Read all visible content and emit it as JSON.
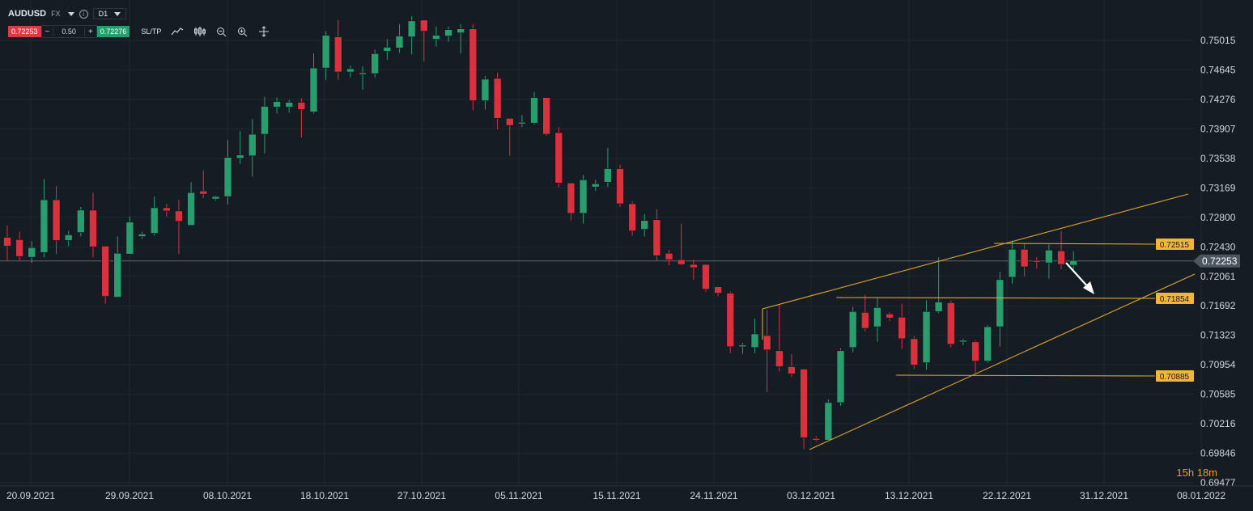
{
  "toolbar": {
    "symbol": "AUDUSD",
    "market": "FX",
    "timeframe": "D1",
    "bid": "0.72253",
    "ask": "0.72276",
    "quantity": "0.50",
    "minus": "−",
    "plus": "+",
    "sltp": "SL/TP",
    "tools": [
      "line-chart-icon",
      "candles-icon",
      "zoom-out-icon",
      "zoom-in-icon",
      "crosshair-icon"
    ]
  },
  "countdown": "15h 18m",
  "colors": {
    "bull": "#2a9d6f",
    "bear": "#d9323f",
    "trendline": "#e0a630",
    "label_bg": "#f0b53a",
    "background": "#161c24"
  },
  "chart_data": {
    "type": "candlestick",
    "symbol": "AUDUSD",
    "timeframe": "D1",
    "current_price": 0.72253,
    "ylim": [
      0.69477,
      0.7527
    ],
    "y_ticks": [
      0.75015,
      0.74645,
      0.74276,
      0.73907,
      0.73538,
      0.73169,
      0.728,
      0.7243,
      0.72061,
      0.71692,
      0.71323,
      0.70954,
      0.70585,
      0.70216,
      0.69846,
      0.69477
    ],
    "x_ticks": [
      "20.09.2021",
      "29.09.2021",
      "08.10.2021",
      "18.10.2021",
      "27.10.2021",
      "05.11.2021",
      "15.11.2021",
      "24.11.2021",
      "03.12.2021",
      "13.12.2021",
      "22.12.2021",
      "31.12.2021",
      "08.01.2022"
    ],
    "candles": [
      {
        "o": 0.7255,
        "h": 0.727,
        "l": 0.7225,
        "c": 0.7244
      },
      {
        "o": 0.7252,
        "h": 0.7262,
        "l": 0.7226,
        "c": 0.7231
      },
      {
        "o": 0.723,
        "h": 0.725,
        "l": 0.7223,
        "c": 0.7242
      },
      {
        "o": 0.7236,
        "h": 0.7328,
        "l": 0.723,
        "c": 0.7302
      },
      {
        "o": 0.7302,
        "h": 0.7319,
        "l": 0.7234,
        "c": 0.7251
      },
      {
        "o": 0.7251,
        "h": 0.7263,
        "l": 0.7244,
        "c": 0.7258
      },
      {
        "o": 0.7261,
        "h": 0.7293,
        "l": 0.7256,
        "c": 0.7289
      },
      {
        "o": 0.7289,
        "h": 0.7311,
        "l": 0.723,
        "c": 0.7243
      },
      {
        "o": 0.7244,
        "h": 0.7244,
        "l": 0.7172,
        "c": 0.7181
      },
      {
        "o": 0.718,
        "h": 0.7256,
        "l": 0.718,
        "c": 0.7235
      },
      {
        "o": 0.7234,
        "h": 0.7281,
        "l": 0.7234,
        "c": 0.7274
      },
      {
        "o": 0.7256,
        "h": 0.7262,
        "l": 0.7253,
        "c": 0.7259
      },
      {
        "o": 0.726,
        "h": 0.7306,
        "l": 0.7257,
        "c": 0.7292
      },
      {
        "o": 0.7292,
        "h": 0.7297,
        "l": 0.7281,
        "c": 0.7288
      },
      {
        "o": 0.7288,
        "h": 0.7302,
        "l": 0.7234,
        "c": 0.7275
      },
      {
        "o": 0.727,
        "h": 0.7324,
        "l": 0.727,
        "c": 0.7311
      },
      {
        "o": 0.7313,
        "h": 0.7339,
        "l": 0.7304,
        "c": 0.7309
      },
      {
        "o": 0.7303,
        "h": 0.7307,
        "l": 0.7301,
        "c": 0.7306
      },
      {
        "o": 0.7306,
        "h": 0.7377,
        "l": 0.7296,
        "c": 0.7355
      },
      {
        "o": 0.7354,
        "h": 0.7388,
        "l": 0.7347,
        "c": 0.7358
      },
      {
        "o": 0.7357,
        "h": 0.7403,
        "l": 0.7331,
        "c": 0.7384
      },
      {
        "o": 0.7384,
        "h": 0.7431,
        "l": 0.736,
        "c": 0.7419
      },
      {
        "o": 0.7418,
        "h": 0.743,
        "l": 0.741,
        "c": 0.7425
      },
      {
        "o": 0.7418,
        "h": 0.7427,
        "l": 0.7411,
        "c": 0.7424
      },
      {
        "o": 0.7424,
        "h": 0.7429,
        "l": 0.738,
        "c": 0.7415
      },
      {
        "o": 0.7412,
        "h": 0.7485,
        "l": 0.741,
        "c": 0.7467
      },
      {
        "o": 0.7467,
        "h": 0.7513,
        "l": 0.7452,
        "c": 0.7508
      },
      {
        "o": 0.7506,
        "h": 0.7527,
        "l": 0.7452,
        "c": 0.7462
      },
      {
        "o": 0.7462,
        "h": 0.747,
        "l": 0.7455,
        "c": 0.7466
      },
      {
        "o": 0.746,
        "h": 0.7469,
        "l": 0.744,
        "c": 0.7461
      },
      {
        "o": 0.746,
        "h": 0.749,
        "l": 0.7455,
        "c": 0.7485
      },
      {
        "o": 0.7488,
        "h": 0.7503,
        "l": 0.7477,
        "c": 0.7493
      },
      {
        "o": 0.7492,
        "h": 0.7522,
        "l": 0.7486,
        "c": 0.7507
      },
      {
        "o": 0.7506,
        "h": 0.7532,
        "l": 0.7484,
        "c": 0.7526
      },
      {
        "o": 0.7527,
        "h": 0.7527,
        "l": 0.7475,
        "c": 0.7513
      },
      {
        "o": 0.7503,
        "h": 0.7519,
        "l": 0.7494,
        "c": 0.7508
      },
      {
        "o": 0.7507,
        "h": 0.7519,
        "l": 0.75,
        "c": 0.7515
      },
      {
        "o": 0.7511,
        "h": 0.7522,
        "l": 0.7485,
        "c": 0.7516
      },
      {
        "o": 0.7516,
        "h": 0.7522,
        "l": 0.7414,
        "c": 0.7426
      },
      {
        "o": 0.7426,
        "h": 0.7457,
        "l": 0.7415,
        "c": 0.7453
      },
      {
        "o": 0.7454,
        "h": 0.7461,
        "l": 0.739,
        "c": 0.7404
      },
      {
        "o": 0.7404,
        "h": 0.7404,
        "l": 0.7357,
        "c": 0.7395
      },
      {
        "o": 0.7398,
        "h": 0.7408,
        "l": 0.7393,
        "c": 0.7399
      },
      {
        "o": 0.7398,
        "h": 0.7437,
        "l": 0.7396,
        "c": 0.743
      },
      {
        "o": 0.743,
        "h": 0.743,
        "l": 0.7382,
        "c": 0.7384
      },
      {
        "o": 0.7386,
        "h": 0.7393,
        "l": 0.7318,
        "c": 0.7323
      },
      {
        "o": 0.7323,
        "h": 0.7323,
        "l": 0.7276,
        "c": 0.7285
      },
      {
        "o": 0.7285,
        "h": 0.7333,
        "l": 0.7272,
        "c": 0.7327
      },
      {
        "o": 0.7318,
        "h": 0.7327,
        "l": 0.7313,
        "c": 0.7322
      },
      {
        "o": 0.7324,
        "h": 0.7367,
        "l": 0.7318,
        "c": 0.7341
      },
      {
        "o": 0.7341,
        "h": 0.7346,
        "l": 0.7293,
        "c": 0.7297
      },
      {
        "o": 0.7297,
        "h": 0.73,
        "l": 0.7257,
        "c": 0.7263
      },
      {
        "o": 0.7265,
        "h": 0.7284,
        "l": 0.7256,
        "c": 0.7276
      },
      {
        "o": 0.7277,
        "h": 0.729,
        "l": 0.7225,
        "c": 0.7232
      },
      {
        "o": 0.7235,
        "h": 0.7239,
        "l": 0.722,
        "c": 0.7227
      },
      {
        "o": 0.7227,
        "h": 0.7272,
        "l": 0.722,
        "c": 0.7221
      },
      {
        "o": 0.7221,
        "h": 0.7227,
        "l": 0.7202,
        "c": 0.7217
      },
      {
        "o": 0.7221,
        "h": 0.7221,
        "l": 0.7187,
        "c": 0.719
      },
      {
        "o": 0.7193,
        "h": 0.7194,
        "l": 0.7181,
        "c": 0.7185
      },
      {
        "o": 0.7185,
        "h": 0.7187,
        "l": 0.711,
        "c": 0.7118
      },
      {
        "o": 0.7118,
        "h": 0.7123,
        "l": 0.7109,
        "c": 0.712
      },
      {
        "o": 0.7117,
        "h": 0.7153,
        "l": 0.711,
        "c": 0.7134
      },
      {
        "o": 0.7132,
        "h": 0.7164,
        "l": 0.7061,
        "c": 0.7114
      },
      {
        "o": 0.7113,
        "h": 0.7171,
        "l": 0.7087,
        "c": 0.7093
      },
      {
        "o": 0.7093,
        "h": 0.7109,
        "l": 0.708,
        "c": 0.7084
      },
      {
        "o": 0.709,
        "h": 0.709,
        "l": 0.699,
        "c": 0.7004
      },
      {
        "o": 0.7003,
        "h": 0.7006,
        "l": 0.6999,
        "c": 0.7001
      },
      {
        "o": 0.7001,
        "h": 0.7052,
        "l": 0.7,
        "c": 0.7048
      },
      {
        "o": 0.7048,
        "h": 0.7116,
        "l": 0.7044,
        "c": 0.7113
      },
      {
        "o": 0.7117,
        "h": 0.7168,
        "l": 0.7111,
        "c": 0.7162
      },
      {
        "o": 0.7161,
        "h": 0.7183,
        "l": 0.7137,
        "c": 0.7141
      },
      {
        "o": 0.7143,
        "h": 0.718,
        "l": 0.7124,
        "c": 0.7167
      },
      {
        "o": 0.7159,
        "h": 0.7161,
        "l": 0.715,
        "c": 0.7154
      },
      {
        "o": 0.7155,
        "h": 0.7172,
        "l": 0.7115,
        "c": 0.7128
      },
      {
        "o": 0.7128,
        "h": 0.7131,
        "l": 0.709,
        "c": 0.7095
      },
      {
        "o": 0.7098,
        "h": 0.7176,
        "l": 0.7089,
        "c": 0.7162
      },
      {
        "o": 0.7162,
        "h": 0.723,
        "l": 0.716,
        "c": 0.7174
      },
      {
        "o": 0.7173,
        "h": 0.7176,
        "l": 0.7117,
        "c": 0.7121
      },
      {
        "o": 0.7124,
        "h": 0.7128,
        "l": 0.712,
        "c": 0.7126
      },
      {
        "o": 0.7124,
        "h": 0.7126,
        "l": 0.7085,
        "c": 0.71
      },
      {
        "o": 0.71,
        "h": 0.7145,
        "l": 0.7098,
        "c": 0.7143
      },
      {
        "o": 0.7143,
        "h": 0.7212,
        "l": 0.7118,
        "c": 0.7202
      },
      {
        "o": 0.7205,
        "h": 0.7251,
        "l": 0.7197,
        "c": 0.724
      },
      {
        "o": 0.724,
        "h": 0.7247,
        "l": 0.7206,
        "c": 0.7218
      },
      {
        "o": 0.7226,
        "h": 0.723,
        "l": 0.7216,
        "c": 0.7225
      },
      {
        "o": 0.7223,
        "h": 0.7246,
        "l": 0.7203,
        "c": 0.7239
      },
      {
        "o": 0.7238,
        "h": 0.7263,
        "l": 0.7215,
        "c": 0.7221
      },
      {
        "o": 0.722,
        "h": 0.7238,
        "l": 0.7212,
        "c": 0.7226
      }
    ],
    "annotations": {
      "price_labels": [
        "0.72515",
        "0.71854",
        "0.70885"
      ],
      "current_label": "0.72253",
      "arrow_direction": "down-right"
    }
  }
}
